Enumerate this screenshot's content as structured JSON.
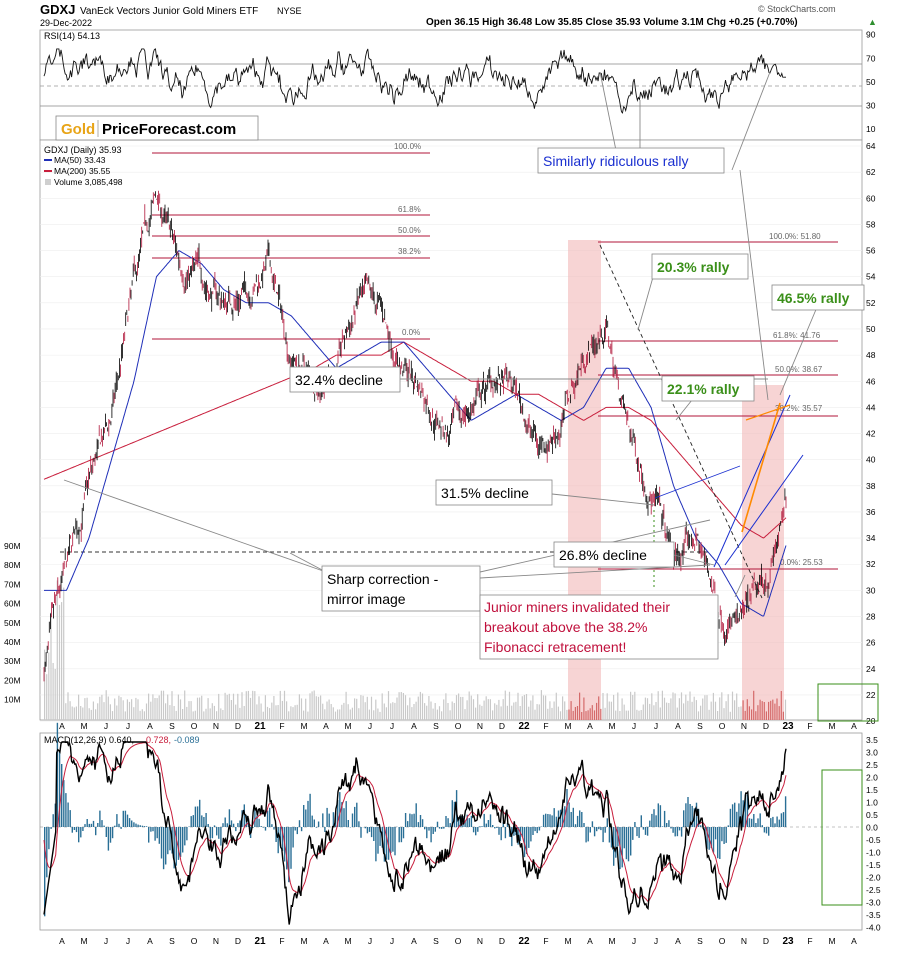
{
  "header": {
    "symbol": "GDXJ",
    "name": "VanEck Vectors Junior Gold Miners ETF",
    "exchange": "NYSE",
    "date": "29-Dec-2022",
    "ohlc": "Open 36.15  High 36.48  Low 35.85  Close 35.93  Volume 3.1M  Chg +0.25 (+0.70%)",
    "ohlc_arrow": "▲",
    "copyright": "© StockCharts.com"
  },
  "brand": {
    "part1": "Gold",
    "part2": "PriceForecast.com"
  },
  "colors": {
    "price": "#000000",
    "ma50": "#1f2fb8",
    "ma200": "#c81e3c",
    "fib": "#b0163a",
    "highlight": "#f2b7b7",
    "annot_blue": "#1a2fd0",
    "annot_green": "#3a8f19",
    "annot_red": "#c0103c",
    "orange": "#ff8a00",
    "macd_hist": "#2a6f96",
    "volume": "#c9c9c9"
  },
  "rsi": {
    "legend": "RSI(14) 54.13",
    "ticks": [
      90,
      70,
      50,
      30,
      10
    ]
  },
  "price_legend": {
    "line1": "GDXJ (Daily) 35.93",
    "line2": "MA(50) 33.43",
    "line3": "MA(200) 35.55",
    "line4": "Volume 3,085,498"
  },
  "price_ticks": [
    64,
    62,
    60,
    58,
    56,
    54,
    52,
    50,
    48,
    46,
    44,
    42,
    40,
    38,
    36,
    34,
    32,
    30,
    28,
    26,
    24,
    22,
    20
  ],
  "volume_ticks": [
    "90M",
    "80M",
    "70M",
    "60M",
    "50M",
    "40M",
    "30M",
    "20M",
    "10M"
  ],
  "macd": {
    "legend_a": "MACD(12,26,9) 0.640,",
    "legend_b": "0.728,",
    "legend_c": "-0.089",
    "ticks": [
      "3.5",
      "3.0",
      "2.5",
      "2.0",
      "1.5",
      "1.0",
      "0.5",
      "0.0",
      "-0.5",
      "-1.0",
      "-1.5",
      "-2.0",
      "-2.5",
      "-3.0",
      "-3.5",
      "-4.0"
    ]
  },
  "months": [
    "A",
    "M",
    "J",
    "J",
    "A",
    "S",
    "O",
    "N",
    "D",
    "21",
    "F",
    "M",
    "A",
    "M",
    "J",
    "J",
    "A",
    "S",
    "O",
    "N",
    "D",
    "22",
    "F",
    "M",
    "A",
    "M",
    "J",
    "J",
    "A",
    "S",
    "O",
    "N",
    "D",
    "23",
    "F",
    "M",
    "A"
  ],
  "fib_left": [
    "100.0%",
    "61.8%",
    "50.0%",
    "38.2%",
    "0.0%"
  ],
  "fib_right": [
    "100.0%: 51.80",
    "61.8%: 41.76",
    "50.0%: 38.67",
    "38.2%: 35.57",
    "0.0%: 25.53"
  ],
  "annotations": {
    "rally_similar": "Similarly ridiculous rally",
    "rally_203": "20.3% rally",
    "rally_465": "46.5% rally",
    "rally_221": "22.1% rally",
    "decline_324": "32.4% decline",
    "decline_315": "31.5% decline",
    "decline_268": "26.8% decline",
    "sharp_1": "Sharp correction -",
    "sharp_2": "mirror image",
    "invalid_1": "Junior miners invalidated their",
    "invalid_2": "breakout above the 38.2%",
    "invalid_3": "Fibonacci retracement!"
  },
  "chart_data": {
    "type": "line",
    "title": "GDXJ VanEck Vectors Junior Gold Miners ETF NYSE",
    "date_range": [
      "2020-04",
      "2022-12-29"
    ],
    "x": [
      "2020-03",
      "2020-04",
      "2020-05",
      "2020-06",
      "2020-07",
      "2020-08",
      "2020-09",
      "2020-10",
      "2020-11",
      "2020-12",
      "2021-01",
      "2021-02",
      "2021-03",
      "2021-04",
      "2021-05",
      "2021-06",
      "2021-07",
      "2021-08",
      "2021-09",
      "2021-10",
      "2021-11",
      "2021-12",
      "2022-01",
      "2022-02",
      "2022-03",
      "2022-04",
      "2022-05",
      "2022-06",
      "2022-07",
      "2022-08",
      "2022-09",
      "2022-10",
      "2022-11",
      "2022-12"
    ],
    "series": [
      {
        "name": "GDXJ (Daily)",
        "values": [
          24,
          31,
          38,
          43,
          53,
          60,
          55,
          54,
          52,
          53,
          55,
          48,
          46,
          47,
          52,
          51,
          47,
          45,
          42,
          44,
          46,
          45,
          41,
          43,
          48,
          50,
          42,
          38,
          32,
          34,
          29,
          27,
          30,
          35.93
        ]
      },
      {
        "name": "MA(50)",
        "values": [
          30,
          30,
          34,
          40,
          46,
          54,
          56,
          55,
          53,
          52,
          52,
          51,
          49,
          47,
          48,
          49,
          49,
          47,
          45,
          43,
          44,
          45,
          44,
          43,
          44,
          47,
          47,
          44,
          38,
          34,
          32,
          29,
          28,
          33.43
        ]
      },
      {
        "name": "MA(200)",
        "values": [
          null,
          null,
          null,
          null,
          null,
          null,
          null,
          null,
          null,
          null,
          null,
          46,
          47,
          48,
          48,
          48,
          49,
          48,
          47,
          46,
          46,
          45,
          45,
          44,
          43,
          44,
          44,
          43,
          41,
          39,
          37,
          35,
          34,
          35.55
        ]
      }
    ],
    "fibonacci_2022": {
      "100.0%": 51.8,
      "61.8%": 41.76,
      "50.0%": 38.67,
      "38.2%": 35.57,
      "0.0%": 25.53
    },
    "rsi_last": 54.13,
    "macd_last": {
      "macd": 0.64,
      "signal": 0.728,
      "hist": -0.089
    },
    "ylim": [
      20,
      64
    ],
    "volume_axis": "10M-90M",
    "grid": true
  }
}
